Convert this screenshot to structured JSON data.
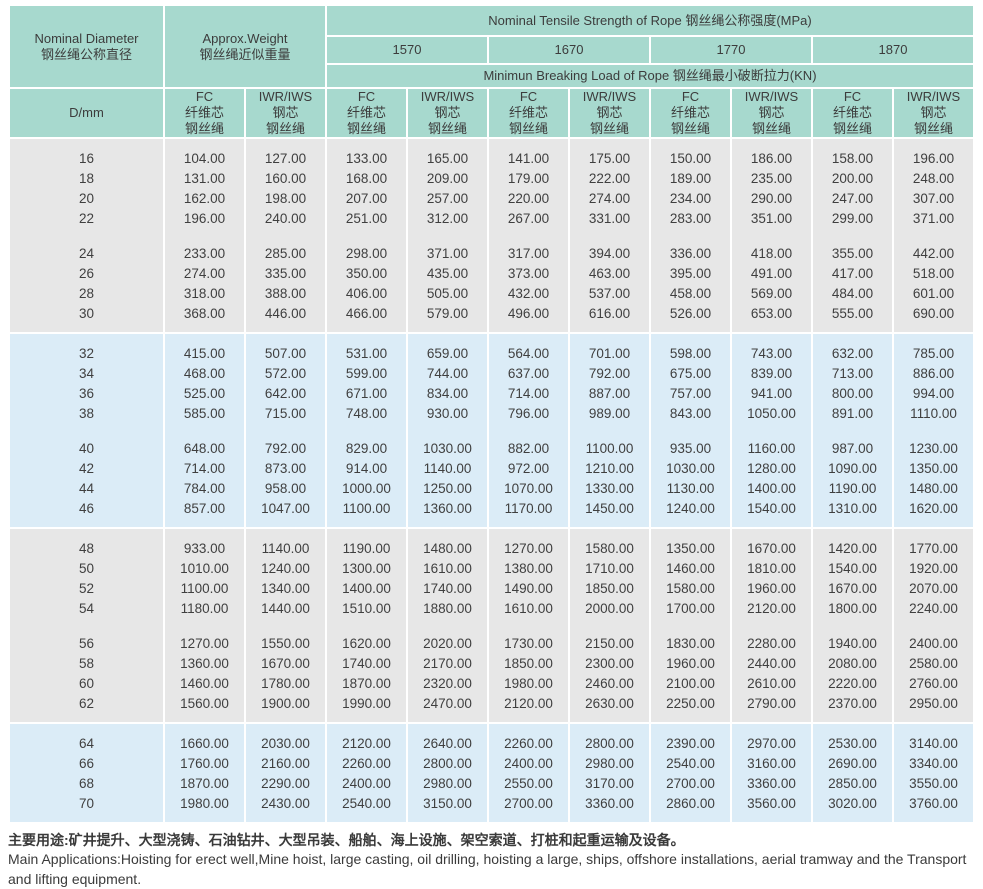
{
  "header": {
    "diameter_en": "Nominal Diameter",
    "diameter_zh": "钢丝绳公称直径",
    "diameter_sub": "D/mm",
    "weight_en": "Approx.Weight",
    "weight_zh": "钢丝绳近似重量",
    "tensile_title": "Nominal Tensile Strength of Rope  钢丝绳公称强度(MPa)",
    "breaking_title": "Minimun Breaking Load of Rope  钢丝绳最小破断拉力(KN)",
    "strength_grades": [
      "1570",
      "1670",
      "1770",
      "1870"
    ],
    "fc_lines": [
      "FC",
      "纤维芯",
      "钢丝绳"
    ],
    "iwr_lines": [
      "IWR/IWS",
      "钢芯",
      "钢丝绳"
    ]
  },
  "table_body": {
    "columns": [
      "D/mm",
      "Weight FC",
      "Weight IWR/IWS",
      "1570 FC",
      "1570 IWR/IWS",
      "1670 FC",
      "1670 IWR/IWS",
      "1770 FC",
      "1770 IWR/IWS",
      "1870 FC",
      "1870 IWR/IWS"
    ],
    "blocks": [
      {
        "tone": "gray",
        "subgroups": [
          {
            "rows": [
              [
                "16",
                "104.00",
                "127.00",
                "133.00",
                "165.00",
                "141.00",
                "175.00",
                "150.00",
                "186.00",
                "158.00",
                "196.00"
              ],
              [
                "18",
                "131.00",
                "160.00",
                "168.00",
                "209.00",
                "179.00",
                "222.00",
                "189.00",
                "235.00",
                "200.00",
                "248.00"
              ],
              [
                "20",
                "162.00",
                "198.00",
                "207.00",
                "257.00",
                "220.00",
                "274.00",
                "234.00",
                "290.00",
                "247.00",
                "307.00"
              ],
              [
                "22",
                "196.00",
                "240.00",
                "251.00",
                "312.00",
                "267.00",
                "331.00",
                "283.00",
                "351.00",
                "299.00",
                "371.00"
              ]
            ]
          },
          {
            "rows": [
              [
                "24",
                "233.00",
                "285.00",
                "298.00",
                "371.00",
                "317.00",
                "394.00",
                "336.00",
                "418.00",
                "355.00",
                "442.00"
              ],
              [
                "26",
                "274.00",
                "335.00",
                "350.00",
                "435.00",
                "373.00",
                "463.00",
                "395.00",
                "491.00",
                "417.00",
                "518.00"
              ],
              [
                "28",
                "318.00",
                "388.00",
                "406.00",
                "505.00",
                "432.00",
                "537.00",
                "458.00",
                "569.00",
                "484.00",
                "601.00"
              ],
              [
                "30",
                "368.00",
                "446.00",
                "466.00",
                "579.00",
                "496.00",
                "616.00",
                "526.00",
                "653.00",
                "555.00",
                "690.00"
              ]
            ]
          }
        ]
      },
      {
        "tone": "blue",
        "subgroups": [
          {
            "rows": [
              [
                "32",
                "415.00",
                "507.00",
                "531.00",
                "659.00",
                "564.00",
                "701.00",
                "598.00",
                "743.00",
                "632.00",
                "785.00"
              ],
              [
                "34",
                "468.00",
                "572.00",
                "599.00",
                "744.00",
                "637.00",
                "792.00",
                "675.00",
                "839.00",
                "713.00",
                "886.00"
              ],
              [
                "36",
                "525.00",
                "642.00",
                "671.00",
                "834.00",
                "714.00",
                "887.00",
                "757.00",
                "941.00",
                "800.00",
                "994.00"
              ],
              [
                "38",
                "585.00",
                "715.00",
                "748.00",
                "930.00",
                "796.00",
                "989.00",
                "843.00",
                "1050.00",
                "891.00",
                "1110.00"
              ]
            ]
          },
          {
            "rows": [
              [
                "40",
                "648.00",
                "792.00",
                "829.00",
                "1030.00",
                "882.00",
                "1100.00",
                "935.00",
                "1160.00",
                "987.00",
                "1230.00"
              ],
              [
                "42",
                "714.00",
                "873.00",
                "914.00",
                "1140.00",
                "972.00",
                "1210.00",
                "1030.00",
                "1280.00",
                "1090.00",
                "1350.00"
              ],
              [
                "44",
                "784.00",
                "958.00",
                "1000.00",
                "1250.00",
                "1070.00",
                "1330.00",
                "1130.00",
                "1400.00",
                "1190.00",
                "1480.00"
              ],
              [
                "46",
                "857.00",
                "1047.00",
                "1100.00",
                "1360.00",
                "1170.00",
                "1450.00",
                "1240.00",
                "1540.00",
                "1310.00",
                "1620.00"
              ]
            ]
          }
        ]
      },
      {
        "tone": "gray",
        "subgroups": [
          {
            "rows": [
              [
                "48",
                "933.00",
                "1140.00",
                "1190.00",
                "1480.00",
                "1270.00",
                "1580.00",
                "1350.00",
                "1670.00",
                "1420.00",
                "1770.00"
              ],
              [
                "50",
                "1010.00",
                "1240.00",
                "1300.00",
                "1610.00",
                "1380.00",
                "1710.00",
                "1460.00",
                "1810.00",
                "1540.00",
                "1920.00"
              ],
              [
                "52",
                "1100.00",
                "1340.00",
                "1400.00",
                "1740.00",
                "1490.00",
                "1850.00",
                "1580.00",
                "1960.00",
                "1670.00",
                "2070.00"
              ],
              [
                "54",
                "1180.00",
                "1440.00",
                "1510.00",
                "1880.00",
                "1610.00",
                "2000.00",
                "1700.00",
                "2120.00",
                "1800.00",
                "2240.00"
              ]
            ]
          },
          {
            "rows": [
              [
                "56",
                "1270.00",
                "1550.00",
                "1620.00",
                "2020.00",
                "1730.00",
                "2150.00",
                "1830.00",
                "2280.00",
                "1940.00",
                "2400.00"
              ],
              [
                "58",
                "1360.00",
                "1670.00",
                "1740.00",
                "2170.00",
                "1850.00",
                "2300.00",
                "1960.00",
                "2440.00",
                "2080.00",
                "2580.00"
              ],
              [
                "60",
                "1460.00",
                "1780.00",
                "1870.00",
                "2320.00",
                "1980.00",
                "2460.00",
                "2100.00",
                "2610.00",
                "2220.00",
                "2760.00"
              ],
              [
                "62",
                "1560.00",
                "1900.00",
                "1990.00",
                "2470.00",
                "2120.00",
                "2630.00",
                "2250.00",
                "2790.00",
                "2370.00",
                "2950.00"
              ]
            ]
          }
        ]
      },
      {
        "tone": "blue",
        "subgroups": [
          {
            "rows": [
              [
                "64",
                "1660.00",
                "2030.00",
                "2120.00",
                "2640.00",
                "2260.00",
                "2800.00",
                "2390.00",
                "2970.00",
                "2530.00",
                "3140.00"
              ],
              [
                "66",
                "1760.00",
                "2160.00",
                "2260.00",
                "2800.00",
                "2400.00",
                "2980.00",
                "2540.00",
                "3160.00",
                "2690.00",
                "3340.00"
              ],
              [
                "68",
                "1870.00",
                "2290.00",
                "2400.00",
                "2980.00",
                "2550.00",
                "3170.00",
                "2700.00",
                "3360.00",
                "2850.00",
                "3550.00"
              ],
              [
                "70",
                "1980.00",
                "2430.00",
                "2540.00",
                "3150.00",
                "2700.00",
                "3360.00",
                "2860.00",
                "3560.00",
                "3020.00",
                "3760.00"
              ]
            ]
          }
        ]
      }
    ]
  },
  "footer": {
    "line_zh": "主要用途:矿井提升、大型浇铸、石油钻井、大型吊装、船舶、海上设施、架空索道、打桩和起重运输及设备。",
    "line_en": "Main Applications:Hoisting for erect well,Mine hoist, large casting, oil drilling, hoisting a large, ships, offshore installations, aerial tramway and the Transport and lifting equipment."
  },
  "colors": {
    "header_teal": "#a7d9ce",
    "block_gray": "#e7e7e7",
    "block_blue": "#dbecf7",
    "text": "#3c3c3c"
  }
}
